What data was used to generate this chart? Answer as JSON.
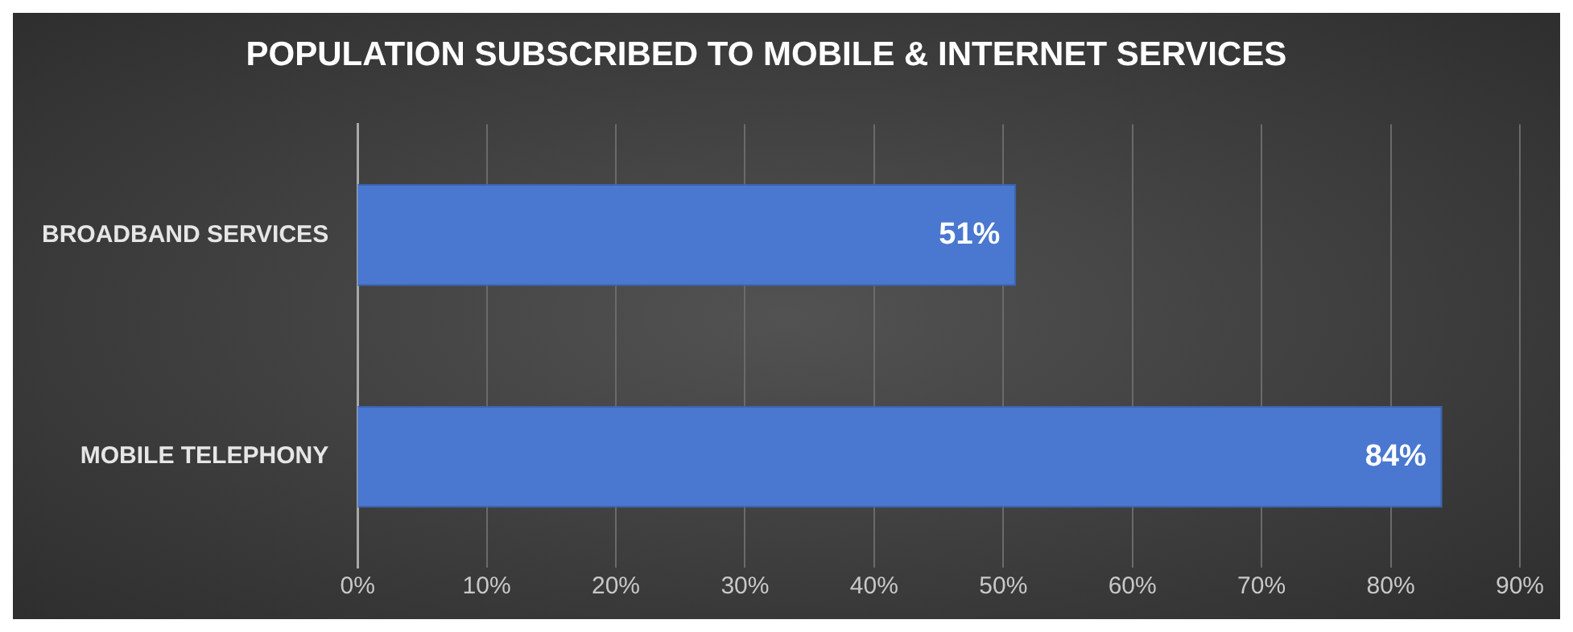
{
  "chart_data": {
    "type": "bar",
    "orientation": "horizontal",
    "title": "POPULATION SUBSCRIBED TO MOBILE & INTERNET SERVICES",
    "categories": [
      "BROADBAND SERVICES",
      "MOBILE TELEPHONY"
    ],
    "values": [
      51,
      84
    ],
    "color": "#4a78d0",
    "value_labels": [
      "51%",
      "84%"
    ],
    "xlim": [
      0,
      90
    ],
    "xticks": [
      {
        "value": 0,
        "label": "0%"
      },
      {
        "value": 10,
        "label": "10%"
      },
      {
        "value": 20,
        "label": "20%"
      },
      {
        "value": 30,
        "label": "30%"
      },
      {
        "value": 40,
        "label": "40%"
      },
      {
        "value": 50,
        "label": "50%"
      },
      {
        "value": 60,
        "label": "60%"
      },
      {
        "value": 70,
        "label": "70%"
      },
      {
        "value": 80,
        "label": "80%"
      },
      {
        "value": 90,
        "label": "90%"
      }
    ],
    "grid": "x",
    "legend": false
  }
}
